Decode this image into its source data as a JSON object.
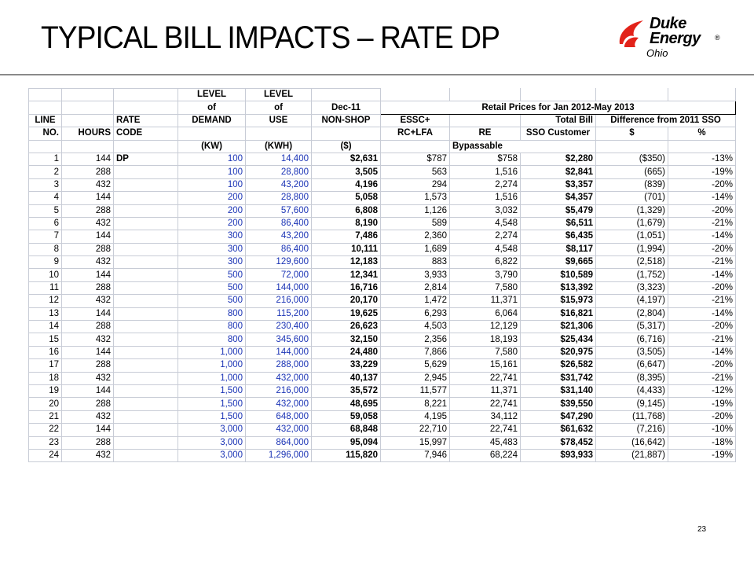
{
  "slide": {
    "title": "TYPICAL BILL IMPACTS – RATE DP",
    "page_number": "23"
  },
  "logo": {
    "line1": "Duke",
    "line2": "Energy",
    "registered": "®",
    "subtitle": "Ohio",
    "flame_color": "#e2231a"
  },
  "table": {
    "header": {
      "r1": {
        "level_a": "LEVEL",
        "level_b": "LEVEL"
      },
      "r2": {
        "of_a": "of",
        "of_b": "of",
        "dec": "Dec-11",
        "retail": "Retail Prices for Jan 2012-May 2013"
      },
      "r3": {
        "line": "LINE",
        "rate": "RATE",
        "demand": "DEMAND",
        "use": "USE",
        "nonshop": "NON-SHOP",
        "essc": "ESSC+",
        "total": "Total Bill",
        "diff": "Difference from 2011 SSO"
      },
      "r4": {
        "no": "NO.",
        "hours": "HOURS",
        "code": "CODE",
        "rclfa": "RC+LFA",
        "re": "RE",
        "sso": "SSO Customer",
        "dollar": "$",
        "pct": "%"
      },
      "r5": {
        "kw": "(KW)",
        "kwh": "(KWH)",
        "dol": "($)",
        "bypass": "Bypassable"
      }
    },
    "rows": [
      {
        "no": "1",
        "hours": "144",
        "code": "DP",
        "kw": "100",
        "kwh": "14,400",
        "nonshop": "$2,631",
        "essc": "$787",
        "re": "$758",
        "total": "$2,280",
        "diff": "($350)",
        "pct": "-13%"
      },
      {
        "no": "2",
        "hours": "288",
        "code": "",
        "kw": "100",
        "kwh": "28,800",
        "nonshop": "3,505",
        "essc": "563",
        "re": "1,516",
        "total": "$2,841",
        "diff": "(665)",
        "pct": "-19%"
      },
      {
        "no": "3",
        "hours": "432",
        "code": "",
        "kw": "100",
        "kwh": "43,200",
        "nonshop": "4,196",
        "essc": "294",
        "re": "2,274",
        "total": "$3,357",
        "diff": "(839)",
        "pct": "-20%"
      },
      {
        "no": "4",
        "hours": "144",
        "code": "",
        "kw": "200",
        "kwh": "28,800",
        "nonshop": "5,058",
        "essc": "1,573",
        "re": "1,516",
        "total": "$4,357",
        "diff": "(701)",
        "pct": "-14%"
      },
      {
        "no": "5",
        "hours": "288",
        "code": "",
        "kw": "200",
        "kwh": "57,600",
        "nonshop": "6,808",
        "essc": "1,126",
        "re": "3,032",
        "total": "$5,479",
        "diff": "(1,329)",
        "pct": "-20%"
      },
      {
        "no": "6",
        "hours": "432",
        "code": "",
        "kw": "200",
        "kwh": "86,400",
        "nonshop": "8,190",
        "essc": "589",
        "re": "4,548",
        "total": "$6,511",
        "diff": "(1,679)",
        "pct": "-21%"
      },
      {
        "no": "7",
        "hours": "144",
        "code": "",
        "kw": "300",
        "kwh": "43,200",
        "nonshop": "7,486",
        "essc": "2,360",
        "re": "2,274",
        "total": "$6,435",
        "diff": "(1,051)",
        "pct": "-14%"
      },
      {
        "no": "8",
        "hours": "288",
        "code": "",
        "kw": "300",
        "kwh": "86,400",
        "nonshop": "10,111",
        "essc": "1,689",
        "re": "4,548",
        "total": "$8,117",
        "diff": "(1,994)",
        "pct": "-20%"
      },
      {
        "no": "9",
        "hours": "432",
        "code": "",
        "kw": "300",
        "kwh": "129,600",
        "nonshop": "12,183",
        "essc": "883",
        "re": "6,822",
        "total": "$9,665",
        "diff": "(2,518)",
        "pct": "-21%"
      },
      {
        "no": "10",
        "hours": "144",
        "code": "",
        "kw": "500",
        "kwh": "72,000",
        "nonshop": "12,341",
        "essc": "3,933",
        "re": "3,790",
        "total": "$10,589",
        "diff": "(1,752)",
        "pct": "-14%"
      },
      {
        "no": "11",
        "hours": "288",
        "code": "",
        "kw": "500",
        "kwh": "144,000",
        "nonshop": "16,716",
        "essc": "2,814",
        "re": "7,580",
        "total": "$13,392",
        "diff": "(3,323)",
        "pct": "-20%"
      },
      {
        "no": "12",
        "hours": "432",
        "code": "",
        "kw": "500",
        "kwh": "216,000",
        "nonshop": "20,170",
        "essc": "1,472",
        "re": "11,371",
        "total": "$15,973",
        "diff": "(4,197)",
        "pct": "-21%"
      },
      {
        "no": "13",
        "hours": "144",
        "code": "",
        "kw": "800",
        "kwh": "115,200",
        "nonshop": "19,625",
        "essc": "6,293",
        "re": "6,064",
        "total": "$16,821",
        "diff": "(2,804)",
        "pct": "-14%"
      },
      {
        "no": "14",
        "hours": "288",
        "code": "",
        "kw": "800",
        "kwh": "230,400",
        "nonshop": "26,623",
        "essc": "4,503",
        "re": "12,129",
        "total": "$21,306",
        "diff": "(5,317)",
        "pct": "-20%"
      },
      {
        "no": "15",
        "hours": "432",
        "code": "",
        "kw": "800",
        "kwh": "345,600",
        "nonshop": "32,150",
        "essc": "2,356",
        "re": "18,193",
        "total": "$25,434",
        "diff": "(6,716)",
        "pct": "-21%"
      },
      {
        "no": "16",
        "hours": "144",
        "code": "",
        "kw": "1,000",
        "kwh": "144,000",
        "nonshop": "24,480",
        "essc": "7,866",
        "re": "7,580",
        "total": "$20,975",
        "diff": "(3,505)",
        "pct": "-14%"
      },
      {
        "no": "17",
        "hours": "288",
        "code": "",
        "kw": "1,000",
        "kwh": "288,000",
        "nonshop": "33,229",
        "essc": "5,629",
        "re": "15,161",
        "total": "$26,582",
        "diff": "(6,647)",
        "pct": "-20%"
      },
      {
        "no": "18",
        "hours": "432",
        "code": "",
        "kw": "1,000",
        "kwh": "432,000",
        "nonshop": "40,137",
        "essc": "2,945",
        "re": "22,741",
        "total": "$31,742",
        "diff": "(8,395)",
        "pct": "-21%"
      },
      {
        "no": "19",
        "hours": "144",
        "code": "",
        "kw": "1,500",
        "kwh": "216,000",
        "nonshop": "35,572",
        "essc": "11,577",
        "re": "11,371",
        "total": "$31,140",
        "diff": "(4,433)",
        "pct": "-12%"
      },
      {
        "no": "20",
        "hours": "288",
        "code": "",
        "kw": "1,500",
        "kwh": "432,000",
        "nonshop": "48,695",
        "essc": "8,221",
        "re": "22,741",
        "total": "$39,550",
        "diff": "(9,145)",
        "pct": "-19%"
      },
      {
        "no": "21",
        "hours": "432",
        "code": "",
        "kw": "1,500",
        "kwh": "648,000",
        "nonshop": "59,058",
        "essc": "4,195",
        "re": "34,112",
        "total": "$47,290",
        "diff": "(11,768)",
        "pct": "-20%"
      },
      {
        "no": "22",
        "hours": "144",
        "code": "",
        "kw": "3,000",
        "kwh": "432,000",
        "nonshop": "68,848",
        "essc": "22,710",
        "re": "22,741",
        "total": "$61,632",
        "diff": "(7,216)",
        "pct": "-10%"
      },
      {
        "no": "23",
        "hours": "288",
        "code": "",
        "kw": "3,000",
        "kwh": "864,000",
        "nonshop": "95,094",
        "essc": "15,997",
        "re": "45,483",
        "total": "$78,452",
        "diff": "(16,642)",
        "pct": "-18%"
      },
      {
        "no": "24",
        "hours": "432",
        "code": "",
        "kw": "3,000",
        "kwh": "1,296,000",
        "nonshop": "115,820",
        "essc": "7,946",
        "re": "68,224",
        "total": "$93,933",
        "diff": "(21,887)",
        "pct": "-19%"
      }
    ]
  }
}
